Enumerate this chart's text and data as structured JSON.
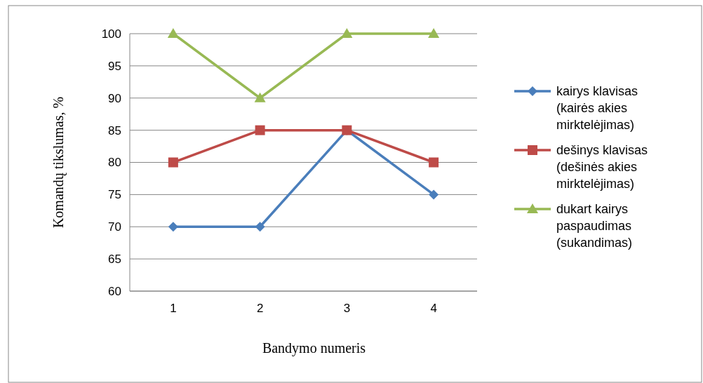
{
  "chart_data": {
    "type": "line",
    "xlabel": "Bandymo numeris",
    "ylabel": "Komandų tikslumas, %",
    "categories": [
      "1",
      "2",
      "3",
      "4"
    ],
    "series": [
      {
        "name": "kairys klavisas (kairės akies mirktelėjimas)",
        "color": "#4a7ebb",
        "values": [
          70,
          70,
          85,
          75
        ],
        "marker": "diamond"
      },
      {
        "name": "dešinys klavisas (dešinės akies mirktelėjimas)",
        "color": "#be4b48",
        "values": [
          80,
          85,
          85,
          80
        ],
        "marker": "square"
      },
      {
        "name": "dukart kairys paspaudimas (sukandimas)",
        "color": "#98b954",
        "values": [
          100,
          90,
          100,
          100
        ],
        "marker": "triangle"
      }
    ],
    "ylim": [
      60,
      100
    ],
    "yticks": [
      60,
      65,
      70,
      75,
      80,
      85,
      90,
      95,
      100
    ],
    "grid": "y",
    "legend": "right",
    "line_style": "solid"
  }
}
